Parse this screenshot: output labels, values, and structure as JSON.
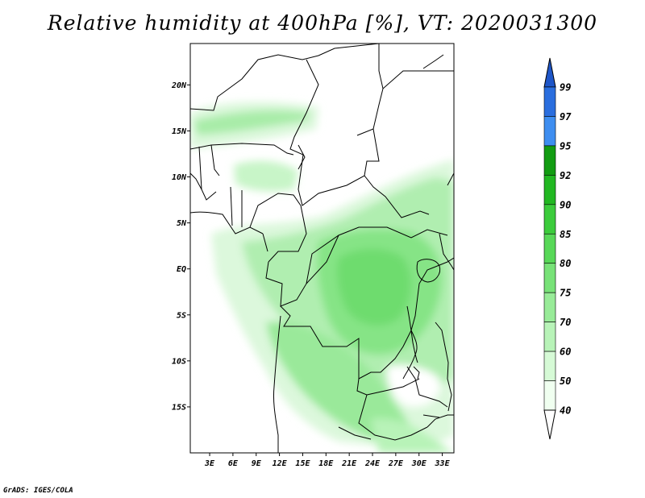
{
  "title": "Relative humidity at 400hPa [%], VT: 2020031300",
  "credit": "GrADS: IGES/COLA",
  "map": {
    "lat_labels": [
      "20N",
      "15N",
      "10N",
      "5N",
      "EQ",
      "5S",
      "10S",
      "15S"
    ],
    "lat_values": [
      20,
      15,
      10,
      5,
      0,
      -5,
      -10,
      -15
    ],
    "lon_labels": [
      "3E",
      "6E",
      "9E",
      "12E",
      "15E",
      "18E",
      "21E",
      "24E",
      "27E",
      "30E",
      "33E"
    ],
    "lon_values": [
      3,
      6,
      9,
      12,
      15,
      18,
      21,
      24,
      27,
      30,
      33
    ],
    "lon_range": [
      0.5,
      34.5
    ],
    "lat_range": [
      -20,
      24.5
    ]
  },
  "colorbar": {
    "levels": [
      "40",
      "50",
      "60",
      "70",
      "75",
      "80",
      "85",
      "90",
      "92",
      "95",
      "97",
      "99"
    ],
    "colors": [
      "#f0fff0",
      "#d6fad6",
      "#b8f3b8",
      "#98eb98",
      "#78e278",
      "#58d858",
      "#3ccc3c",
      "#22b822",
      "#129c12",
      "#3e8ef0",
      "#2a6ede",
      "#1e56c8"
    ]
  }
}
